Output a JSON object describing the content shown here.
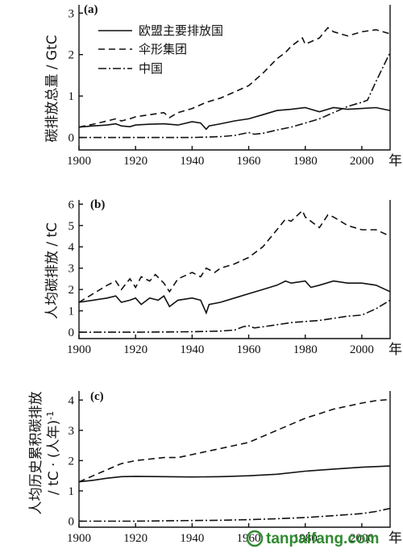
{
  "chart_data": [
    {
      "panel": "(a)",
      "type": "line",
      "ylabel": "碳排放总量 / GtC",
      "x_ticks": [
        "1900",
        "1920",
        "1940",
        "1960",
        "1980",
        "2000"
      ],
      "x_unit": "年",
      "y_ticks": [
        "0",
        "1",
        "2",
        "3"
      ],
      "xlim": [
        1900,
        2010
      ],
      "ylim": [
        -0.3,
        3.2
      ],
      "legend_position": "top-left",
      "series": [
        {
          "name": "欧盟主要排放国",
          "style": "solid",
          "x": [
            1900,
            1905,
            1910,
            1913,
            1915,
            1918,
            1920,
            1925,
            1930,
            1935,
            1940,
            1943,
            1945,
            1946,
            1950,
            1955,
            1960,
            1965,
            1970,
            1975,
            1980,
            1985,
            1990,
            1995,
            2000,
            2005,
            2010
          ],
          "y": [
            0.25,
            0.28,
            0.3,
            0.33,
            0.28,
            0.26,
            0.3,
            0.32,
            0.33,
            0.3,
            0.38,
            0.35,
            0.2,
            0.28,
            0.33,
            0.4,
            0.45,
            0.55,
            0.65,
            0.68,
            0.72,
            0.62,
            0.72,
            0.68,
            0.7,
            0.72,
            0.65
          ]
        },
        {
          "name": "伞形集团",
          "style": "dashed",
          "x": [
            1900,
            1905,
            1910,
            1913,
            1915,
            1918,
            1920,
            1925,
            1930,
            1932,
            1935,
            1940,
            1945,
            1950,
            1955,
            1960,
            1965,
            1970,
            1973,
            1975,
            1979,
            1980,
            1985,
            1988,
            1990,
            1995,
            2000,
            2005,
            2010
          ],
          "y": [
            0.25,
            0.32,
            0.4,
            0.45,
            0.4,
            0.45,
            0.5,
            0.55,
            0.6,
            0.48,
            0.6,
            0.7,
            0.85,
            0.95,
            1.1,
            1.25,
            1.55,
            1.9,
            2.05,
            2.2,
            2.4,
            2.25,
            2.4,
            2.65,
            2.55,
            2.45,
            2.55,
            2.6,
            2.5
          ]
        },
        {
          "name": "中国",
          "style": "dashdot",
          "x": [
            1900,
            1920,
            1940,
            1950,
            1955,
            1960,
            1962,
            1965,
            1970,
            1975,
            1980,
            1985,
            1990,
            1995,
            2000,
            2002,
            2005,
            2010
          ],
          "y": [
            0.0,
            0.0,
            0.0,
            0.02,
            0.05,
            0.12,
            0.08,
            0.1,
            0.18,
            0.25,
            0.35,
            0.45,
            0.6,
            0.75,
            0.85,
            0.9,
            1.35,
            2.05
          ]
        }
      ]
    },
    {
      "panel": "(b)",
      "type": "line",
      "ylabel": "人均碳排放 / tC",
      "x_ticks": [
        "1900",
        "1920",
        "1940",
        "1960",
        "1980",
        "2000"
      ],
      "x_unit": "年",
      "y_ticks": [
        "0",
        "1",
        "2",
        "3",
        "4",
        "5",
        "6"
      ],
      "xlim": [
        1900,
        2010
      ],
      "ylim": [
        -0.3,
        6.2
      ],
      "series": [
        {
          "name": "欧盟主要排放国",
          "style": "solid",
          "x": [
            1900,
            1905,
            1910,
            1913,
            1915,
            1918,
            1920,
            1922,
            1925,
            1928,
            1930,
            1932,
            1935,
            1940,
            1943,
            1945,
            1946,
            1950,
            1955,
            1960,
            1965,
            1970,
            1973,
            1975,
            1980,
            1982,
            1985,
            1990,
            1995,
            2000,
            2005,
            2010
          ],
          "y": [
            1.4,
            1.5,
            1.6,
            1.7,
            1.4,
            1.5,
            1.6,
            1.3,
            1.6,
            1.5,
            1.7,
            1.2,
            1.5,
            1.6,
            1.5,
            0.9,
            1.3,
            1.4,
            1.6,
            1.8,
            2.0,
            2.2,
            2.4,
            2.3,
            2.4,
            2.1,
            2.2,
            2.4,
            2.3,
            2.3,
            2.2,
            1.9
          ]
        },
        {
          "name": "伞形集团",
          "style": "dashed",
          "x": [
            1900,
            1905,
            1910,
            1913,
            1915,
            1918,
            1920,
            1922,
            1925,
            1927,
            1930,
            1932,
            1935,
            1940,
            1943,
            1945,
            1948,
            1950,
            1955,
            1960,
            1965,
            1970,
            1973,
            1975,
            1979,
            1980,
            1985,
            1988,
            1990,
            1995,
            2000,
            2005,
            2010
          ],
          "y": [
            1.4,
            1.8,
            2.2,
            2.4,
            2.0,
            2.5,
            2.1,
            2.6,
            2.4,
            2.7,
            2.3,
            1.9,
            2.5,
            2.8,
            2.6,
            3.0,
            2.8,
            3.0,
            3.2,
            3.5,
            4.0,
            4.8,
            5.3,
            5.2,
            5.7,
            5.4,
            4.9,
            5.5,
            5.4,
            5.0,
            4.8,
            4.8,
            4.5
          ]
        },
        {
          "name": "中国",
          "style": "dashdot",
          "x": [
            1900,
            1920,
            1940,
            1950,
            1955,
            1958,
            1960,
            1962,
            1965,
            1970,
            1975,
            1980,
            1985,
            1990,
            1995,
            2000,
            2005,
            2010
          ],
          "y": [
            0.0,
            0.0,
            0.02,
            0.05,
            0.1,
            0.25,
            0.3,
            0.2,
            0.25,
            0.35,
            0.45,
            0.5,
            0.55,
            0.65,
            0.75,
            0.8,
            1.1,
            1.5
          ]
        }
      ]
    },
    {
      "panel": "(c)",
      "type": "line",
      "ylabel": "人均历史累积碳排放",
      "ylabel2": "/ tC · (人年)",
      "ylabel2_sup": "-1",
      "x_ticks": [
        "1900",
        "1920",
        "1940",
        "1960",
        "1980",
        "2000"
      ],
      "x_unit": "年",
      "y_ticks": [
        "0",
        "1",
        "2",
        "3",
        "4"
      ],
      "xlim": [
        1900,
        2010
      ],
      "ylim": [
        -0.2,
        4.3
      ],
      "series": [
        {
          "name": "欧盟主要排放国",
          "style": "solid",
          "x": [
            1900,
            1905,
            1910,
            1915,
            1920,
            1930,
            1940,
            1950,
            1960,
            1970,
            1980,
            1990,
            2000,
            2010
          ],
          "y": [
            1.3,
            1.35,
            1.42,
            1.47,
            1.48,
            1.47,
            1.46,
            1.47,
            1.5,
            1.55,
            1.65,
            1.72,
            1.78,
            1.82
          ]
        },
        {
          "name": "伞形集团",
          "style": "dashed",
          "x": [
            1900,
            1905,
            1910,
            1915,
            1920,
            1925,
            1930,
            1935,
            1940,
            1945,
            1950,
            1955,
            1960,
            1965,
            1970,
            1975,
            1980,
            1985,
            1990,
            1995,
            2000,
            2005,
            2010
          ],
          "y": [
            1.3,
            1.5,
            1.7,
            1.9,
            2.0,
            2.05,
            2.1,
            2.1,
            2.2,
            2.3,
            2.4,
            2.5,
            2.6,
            2.8,
            3.0,
            3.2,
            3.4,
            3.55,
            3.7,
            3.8,
            3.9,
            3.98,
            4.02
          ]
        },
        {
          "name": "中国",
          "style": "dashdot",
          "x": [
            1900,
            1920,
            1940,
            1950,
            1960,
            1970,
            1980,
            1990,
            2000,
            2005,
            2010
          ],
          "y": [
            0.0,
            0.0,
            0.02,
            0.03,
            0.05,
            0.08,
            0.12,
            0.18,
            0.25,
            0.32,
            0.42
          ]
        }
      ]
    }
  ],
  "watermark": {
    "text": "tanpaifang.com",
    "color": "#2f8a2f"
  }
}
